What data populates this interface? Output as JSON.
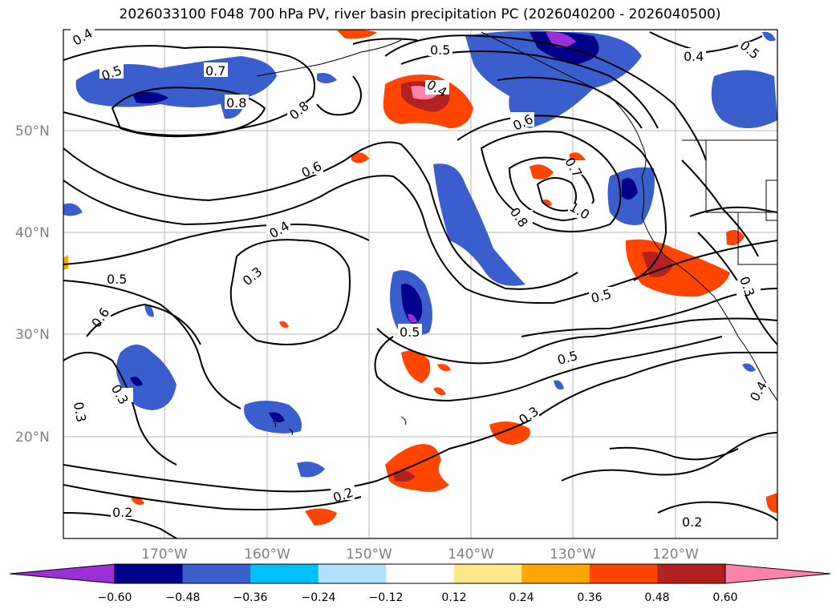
{
  "title": "2026033100 F048 700 hPa PV, river basin precipitation PC (2026040200 - 2026040500)",
  "lat_labels": [
    "50°N",
    "40°N",
    "30°N",
    "20°N"
  ],
  "lon_labels": [
    "170°W",
    "160°W",
    "150°W",
    "140°W",
    "130°W",
    "120°W"
  ],
  "contour_labels": [
    "0.4",
    "0.5",
    "0.7",
    "0.8",
    "0.8",
    "0.5",
    "0.4",
    "0.5",
    "0.6",
    "0.8",
    "0.7",
    "1.0",
    "0.6",
    "0.4",
    "0.3",
    "0.5",
    "0.6",
    "0.3",
    "0.3",
    "0.5",
    "0.5",
    "0.3",
    "0.2",
    "0.2",
    "0.2",
    "0.3",
    "0.4",
    "0.5",
    "0.4"
  ],
  "colorbar": {
    "ticks": [
      "−0.60",
      "−0.48",
      "−0.36",
      "−0.24",
      "−0.12",
      "0.12",
      "0.24",
      "0.36",
      "0.48",
      "0.60"
    ],
    "colors": [
      "#9b30d9",
      "#00008b",
      "#3a5fcd",
      "#00bfff",
      "#b0e2ff",
      "#ffffff",
      "#ffe88a",
      "#ffa500",
      "#ff4500",
      "#b22222",
      "#ff82ab"
    ]
  },
  "colors": {
    "deep_purple": "#9b30d9",
    "navy": "#00008b",
    "blue": "#3a5fcd",
    "cyan": "#00bfff",
    "light_blue": "#b0e2ff",
    "yellow": "#ffe88a",
    "orange": "#ffa500",
    "red_orange": "#ff4500",
    "dark_red": "#b22222",
    "pink": "#ff82ab"
  }
}
